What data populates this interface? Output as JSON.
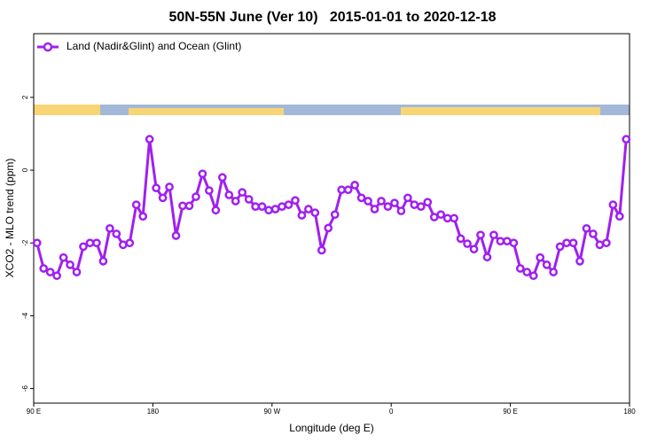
{
  "chart_data": {
    "type": "line",
    "title": "50N-55N June (Ver 10)   2015-01-01 to 2020-12-18",
    "xlabel": "Longitude (deg E)",
    "ylabel": "XCO2 - MLO trend (ppm)",
    "x": [
      92.5,
      97.5,
      102.5,
      107.5,
      112.5,
      117.5,
      122.5,
      127.5,
      132.5,
      137.5,
      142.5,
      147.5,
      152.5,
      157.5,
      162.5,
      167.5,
      172.5,
      177.5,
      182.5,
      187.5,
      192.5,
      197.5,
      202.5,
      207.5,
      212.5,
      217.5,
      222.5,
      227.5,
      232.5,
      237.5,
      242.5,
      247.5,
      252.5,
      257.5,
      262.5,
      267.5,
      272.5,
      277.5,
      282.5,
      287.5,
      292.5,
      297.5,
      302.5,
      307.5,
      312.5,
      317.5,
      322.5,
      327.5,
      332.5,
      337.5,
      342.5,
      347.5,
      352.5,
      357.5,
      362.5,
      367.5,
      372.5,
      377.5,
      382.5,
      387.5,
      392.5,
      397.5,
      402.5,
      407.5,
      412.5,
      417.5,
      422.5,
      427.5,
      432.5,
      437.5,
      442.5,
      447.5,
      452.5,
      457.5,
      462.5,
      467.5,
      472.5,
      477.5,
      482.5,
      487.5,
      492.5,
      497.5,
      502.5,
      507.5,
      512.5,
      517.5,
      522.5,
      527.5,
      532.5,
      537.5
    ],
    "series": [
      {
        "name": "Land (Nadir&Glint) and Ocean (Glint)",
        "color": "#a020f0",
        "values": [
          -2.0,
          -2.7,
          -2.8,
          -2.9,
          -2.4,
          -2.6,
          -2.8,
          -2.1,
          -2.0,
          -2.0,
          -2.5,
          -1.6,
          -1.75,
          -2.05,
          -2.0,
          -0.95,
          -1.27,
          0.85,
          -0.49,
          -0.76,
          -0.46,
          -1.8,
          -0.98,
          -0.98,
          -0.73,
          -0.1,
          -0.56,
          -1.1,
          -0.2,
          -0.68,
          -0.85,
          -0.61,
          -0.8,
          -1.0,
          -1.0,
          -1.1,
          -1.07,
          -1.0,
          -0.95,
          -0.83,
          -1.24,
          -1.07,
          -1.17,
          -2.2,
          -1.59,
          -1.22,
          -0.54,
          -0.54,
          -0.41,
          -0.76,
          -0.85,
          -1.07,
          -0.85,
          -1.0,
          -0.9,
          -1.12,
          -0.76,
          -0.95,
          -1.0,
          -0.88,
          -1.29,
          -1.22,
          -1.32,
          -1.32,
          -1.88,
          -2.02,
          -2.17,
          -1.78,
          -2.39,
          -1.78,
          -1.95,
          -1.95,
          -2.0,
          -2.7,
          -2.8,
          -2.9,
          -2.4,
          -2.6,
          -2.8,
          -2.1,
          -2.0,
          -2.0,
          -2.5,
          -1.6,
          -1.75,
          -2.05,
          -2.0,
          -0.95,
          -1.27,
          0.85
        ]
      }
    ],
    "xlim": [
      90,
      540
    ],
    "xticks": [
      {
        "value": 90,
        "label": "90 E"
      },
      180,
      {
        "value": 270,
        "label": "90 W"
      },
      {
        "value": 360,
        "label": "0"
      },
      {
        "value": 450,
        "label": "90 E"
      },
      {
        "value": 540,
        "label": "180"
      }
    ],
    "ylim": [
      -6.4,
      3.75
    ],
    "yticks": [
      -6,
      -4,
      -2,
      0,
      2
    ],
    "legend": "top-left"
  }
}
